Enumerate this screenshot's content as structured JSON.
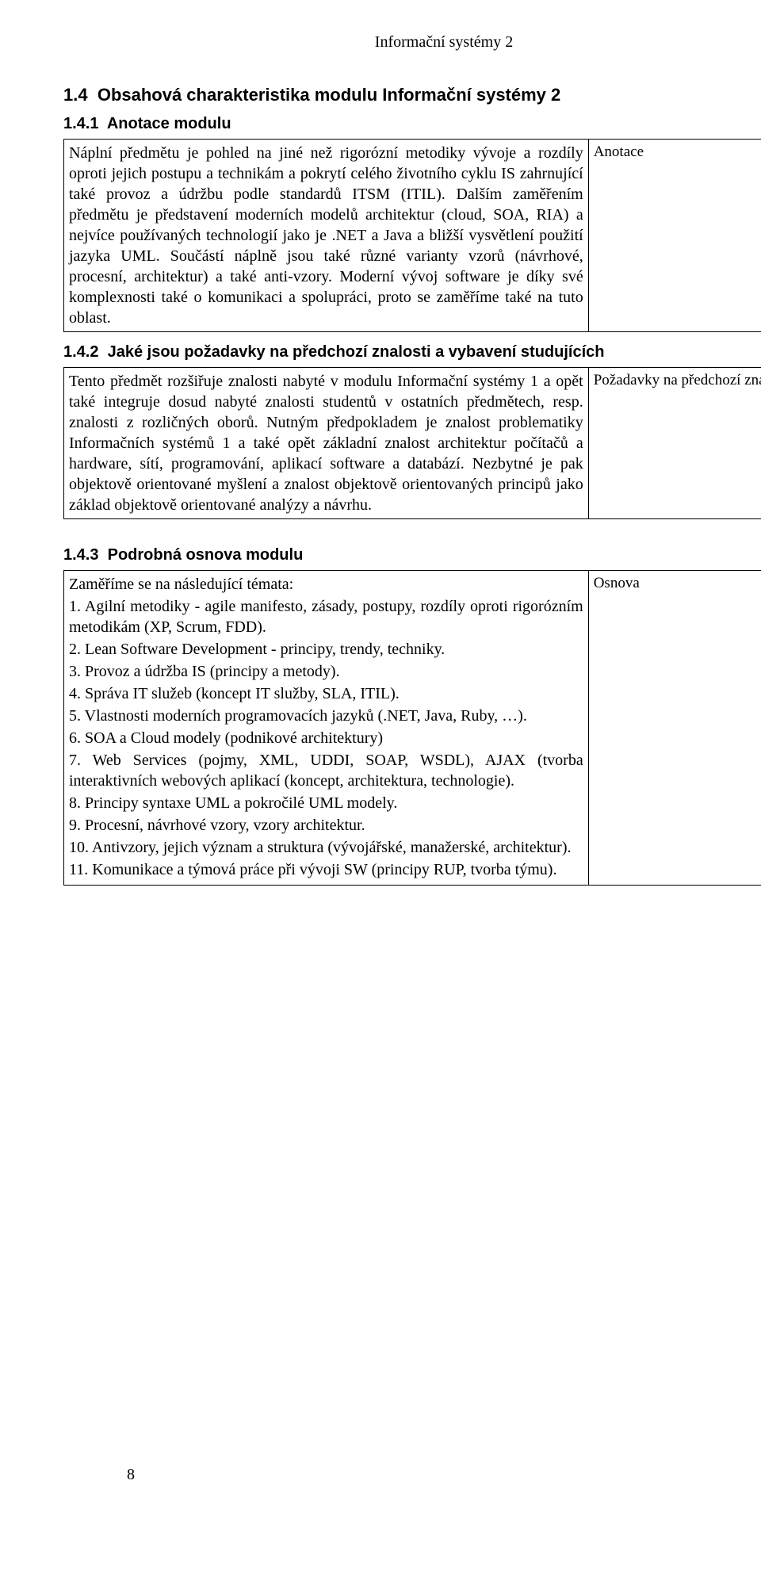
{
  "colors": {
    "text": "#000000",
    "background": "#ffffff",
    "border": "#000000"
  },
  "fonts": {
    "body_family": "Times New Roman",
    "heading_family": "Arial",
    "body_size_pt": 15,
    "heading_size_pt": 16
  },
  "header": {
    "running_title": "Informační systémy 2"
  },
  "page": {
    "number": "8"
  },
  "sec": {
    "h2_num": "1.4",
    "h2_text": "Obsahová charakteristika modulu Informační systémy 2",
    "s1": {
      "num": "1.4.1",
      "title": "Anotace modulu",
      "body": "Náplní předmětu je pohled na jiné než rigorózní metodiky vývoje a rozdíly oproti jejich postupu a technikám a pokrytí celého životního cyklu IS zahrnující také provoz a údržbu podle standardů ITSM (ITIL). Dalším zaměřením předmětu je představení moderních modelů architektur (cloud, SOA, RIA) a nejvíce používaných technologií jako je .NET a Java a bližší vysvětlení použití jazyka UML. Součástí náplně jsou také různé varianty vzorů (návrhové, procesní, architektur) a také anti-vzory. Moderní vývoj software je díky své komplexnosti také o komunikaci a spolupráci, proto se zaměříme také na tuto oblast.",
      "margin_note": "Anotace"
    },
    "s2": {
      "num": "1.4.2",
      "title": "Jaké jsou požadavky na předchozí znalosti a vybavení studujících",
      "body": "Tento předmět rozšiřuje znalosti nabyté v modulu Informační systémy 1 a opět také integruje dosud nabyté znalosti studentů v ostatních předmětech, resp. znalosti z rozličných oborů. Nutným předpokladem je znalost problematiky Informačních systémů 1 a také opět základní znalost architektur počítačů a hardware, sítí, programování, aplikací software a databází. Nezbytné je pak objektově orientované myšlení a znalost objektově orientovaných principů jako základ objektově orientované analýzy a návrhu.",
      "margin_note": "Požadavky na předchozí znalosti"
    },
    "s3": {
      "num": "1.4.3",
      "title": "Podrobná osnova modulu",
      "lead": "Zaměříme se na následující témata:",
      "items": [
        "1. Agilní metodiky - agile manifesto, zásady, postupy, rozdíly oproti rigorózním metodikám (XP, Scrum, FDD).",
        "2. Lean Software Development - principy, trendy, techniky.",
        "3. Provoz a údržba IS (principy a metody).",
        "4. Správa IT služeb (koncept IT služby, SLA, ITIL).",
        "5. Vlastnosti moderních programovacích jazyků (.NET, Java, Ruby, …).",
        "6. SOA a Cloud modely (podnikové architektury)",
        "7. Web Services (pojmy, XML, UDDI, SOAP, WSDL), AJAX (tvorba interaktivních webových aplikací (koncept, architektura, technologie).",
        "8. Principy syntaxe UML a pokročilé UML modely.",
        "9. Procesní, návrhové vzory, vzory architektur.",
        "10. Antivzory, jejich význam a struktura (vývojářské, manažerské, architektur).",
        "11. Komunikace a týmová práce při vývoji SW (principy RUP, tvorba týmu)."
      ],
      "margin_note": "Osnova"
    }
  }
}
